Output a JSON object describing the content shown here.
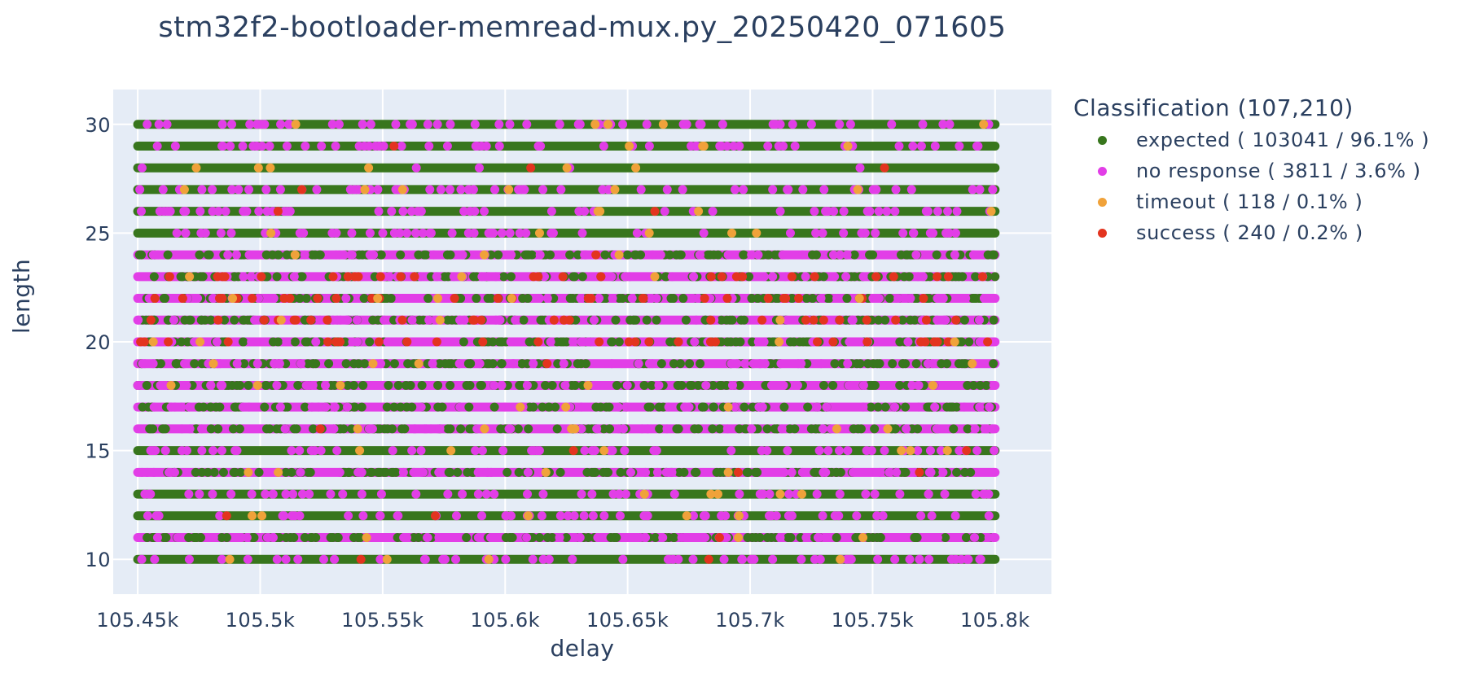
{
  "chart_data": {
    "type": "scatter",
    "title": "stm32f2-bootloader-memread-mux.py_20250420_071605",
    "xlabel": "delay",
    "ylabel": "length",
    "xlim": [
      105440,
      105823
    ],
    "ylim": [
      8.4,
      31.6
    ],
    "x_ticks": [
      105450,
      105500,
      105550,
      105600,
      105650,
      105700,
      105750,
      105800
    ],
    "x_tick_labels": [
      "105.45k",
      "105.5k",
      "105.55k",
      "105.6k",
      "105.65k",
      "105.7k",
      "105.75k",
      "105.8k"
    ],
    "y_ticks": [
      10,
      15,
      20,
      25,
      30
    ],
    "y_tick_labels": [
      "10",
      "15",
      "20",
      "25",
      "30"
    ],
    "y_levels": [
      10,
      11,
      12,
      13,
      14,
      15,
      16,
      17,
      18,
      19,
      20,
      21,
      22,
      23,
      24,
      25,
      26,
      27,
      28,
      29,
      30
    ],
    "x_range": [
      105450,
      105800
    ],
    "grid": true,
    "legend_position": "right",
    "legend_title": "Classification (107,210)",
    "series": [
      {
        "name": "expected ( 103041 / 96.1% )",
        "color": "#38761d",
        "count": 103041
      },
      {
        "name": "no response ( 3811 / 3.6% )",
        "color": "#e23ee7",
        "count": 3811
      },
      {
        "name": "timeout ( 118 / 0.1% )",
        "color": "#f0a23a",
        "count": 118
      },
      {
        "name": "success ( 240 / 0.2% )",
        "color": "#e3341f",
        "count": 240
      }
    ],
    "row_dominant": {
      "10": "expected",
      "11": "no response",
      "12": "expected",
      "13": "expected",
      "14": "no response",
      "15": "expected",
      "16": "no response",
      "17": "no response",
      "18": "no response",
      "19": "no response",
      "20": "no response",
      "21": "no response",
      "22": "no response",
      "23": "no response",
      "24": "no response",
      "25": "expected",
      "26": "expected",
      "27": "expected",
      "28": "expected",
      "29": "expected",
      "30": "expected"
    },
    "plot_bgcolor": "#e5ecf6"
  }
}
